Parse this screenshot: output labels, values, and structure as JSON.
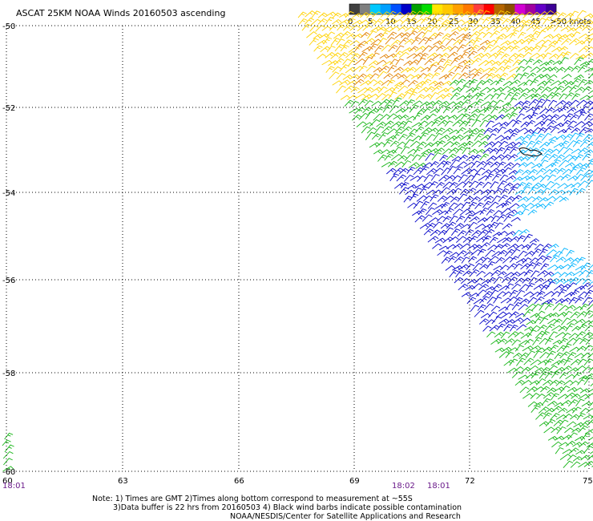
{
  "title": "ASCAT 25KM NOAA Winds 20160503 ascending",
  "legend": {
    "labels": [
      "0",
      "5",
      "10",
      "15",
      "20",
      "25",
      "30",
      "35",
      "40",
      "45",
      ">50 knots"
    ],
    "colors": [
      "#404040",
      "#7f7f7f",
      "#00c8ff",
      "#00a0ff",
      "#0050ff",
      "#0000c8",
      "#00a000",
      "#00dc00",
      "#ffe600",
      "#ffc800",
      "#ffa000",
      "#ff7800",
      "#ff3c3c",
      "#ff0000",
      "#b46400",
      "#8c5000",
      "#d200d2",
      "#a000a0",
      "#6400c8",
      "#3c0096"
    ]
  },
  "axes": {
    "lon_ticks": [
      "60",
      "63",
      "66",
      "69",
      "72",
      "75"
    ],
    "lat_ticks": [
      "-50",
      "-52",
      "-54",
      "-56",
      "-58",
      "-60"
    ]
  },
  "times": [
    "18:01",
    "18:02",
    "18:01"
  ],
  "notes": [
    "Note: 1) Times are GMT 2)Times along bottom correspond to measurement at ~55S",
    "3)Data buffer is 22 hrs from 20160503 4) Black wind barbs indicate possible contamination",
    "NOAA/NESDIS/Center for Satellite Applications and Research"
  ],
  "speed_colors": {
    "yellow": "#ffd200",
    "orange": "#e08000",
    "green": "#14b414",
    "blue": "#0000c8",
    "lightblue": "#00b4ff",
    "black": "#000000"
  }
}
